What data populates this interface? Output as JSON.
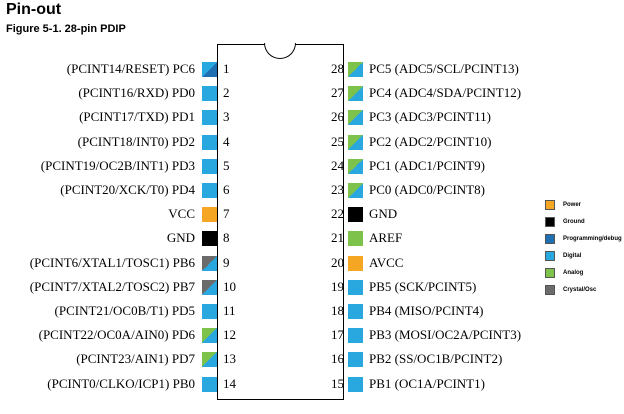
{
  "title": "Pin-out",
  "subtitle": "Figure 5-1.  28-pin PDIP",
  "colors": {
    "power": "#f5a623",
    "ground": "#000000",
    "programming": "#1f6fb2",
    "digital": "#29a8e0",
    "analog": "#7dc24b",
    "crystal": "#6b6b6b"
  },
  "left_pins": [
    {
      "num": "1",
      "label": "(PCINT14/RESET) PC6",
      "type": "prog_digital"
    },
    {
      "num": "2",
      "label": "(PCINT16/RXD) PD0",
      "type": "digital"
    },
    {
      "num": "3",
      "label": "(PCINT17/TXD) PD1",
      "type": "digital"
    },
    {
      "num": "4",
      "label": "(PCINT18/INT0) PD2",
      "type": "digital"
    },
    {
      "num": "5",
      "label": "(PCINT19/OC2B/INT1) PD3",
      "type": "digital"
    },
    {
      "num": "6",
      "label": "(PCINT20/XCK/T0) PD4",
      "type": "digital"
    },
    {
      "num": "7",
      "label": "VCC",
      "type": "power"
    },
    {
      "num": "8",
      "label": "GND",
      "type": "ground"
    },
    {
      "num": "9",
      "label": "(PCINT6/XTAL1/TOSC1) PB6",
      "type": "crystal_digital"
    },
    {
      "num": "10",
      "label": "(PCINT7/XTAL2/TOSC2) PB7",
      "type": "crystal_digital"
    },
    {
      "num": "11",
      "label": "(PCINT21/OC0B/T1) PD5",
      "type": "digital"
    },
    {
      "num": "12",
      "label": "(PCINT22/OC0A/AIN0) PD6",
      "type": "analog_digital"
    },
    {
      "num": "13",
      "label": "(PCINT23/AIN1) PD7",
      "type": "analog_digital"
    },
    {
      "num": "14",
      "label": "(PCINT0/CLKO/ICP1) PB0",
      "type": "digital"
    }
  ],
  "right_pins": [
    {
      "num": "28",
      "label": "PC5 (ADC5/SCL/PCINT13)",
      "type": "analog_digital"
    },
    {
      "num": "27",
      "label": "PC4 (ADC4/SDA/PCINT12)",
      "type": "analog_digital"
    },
    {
      "num": "26",
      "label": "PC3 (ADC3/PCINT11)",
      "type": "analog_digital"
    },
    {
      "num": "25",
      "label": "PC2 (ADC2/PCINT10)",
      "type": "analog_digital"
    },
    {
      "num": "24",
      "label": "PC1 (ADC1/PCINT9)",
      "type": "analog_digital"
    },
    {
      "num": "23",
      "label": "PC0 (ADC0/PCINT8)",
      "type": "analog_digital"
    },
    {
      "num": "22",
      "label": "GND",
      "type": "ground"
    },
    {
      "num": "21",
      "label": "AREF",
      "type": "analog"
    },
    {
      "num": "20",
      "label": "AVCC",
      "type": "power"
    },
    {
      "num": "19",
      "label": "PB5 (SCK/PCINT5)",
      "type": "digital"
    },
    {
      "num": "18",
      "label": "PB4 (MISO/PCINT4)",
      "type": "digital"
    },
    {
      "num": "17",
      "label": "PB3 (MOSI/OC2A/PCINT3)",
      "type": "digital"
    },
    {
      "num": "16",
      "label": "PB2 (SS/OC1B/PCINT2)",
      "type": "digital"
    },
    {
      "num": "15",
      "label": "PB1 (OC1A/PCINT1)",
      "type": "digital"
    }
  ],
  "legend": [
    {
      "label": "Power",
      "color": "#f5a623"
    },
    {
      "label": "Ground",
      "color": "#000000"
    },
    {
      "label": "Programming/debug",
      "color": "#1f6fb2"
    },
    {
      "label": "Digital",
      "color": "#29a8e0"
    },
    {
      "label": "Analog",
      "color": "#7dc24b"
    },
    {
      "label": "Crystal/Osc",
      "color": "#6b6b6b"
    }
  ]
}
